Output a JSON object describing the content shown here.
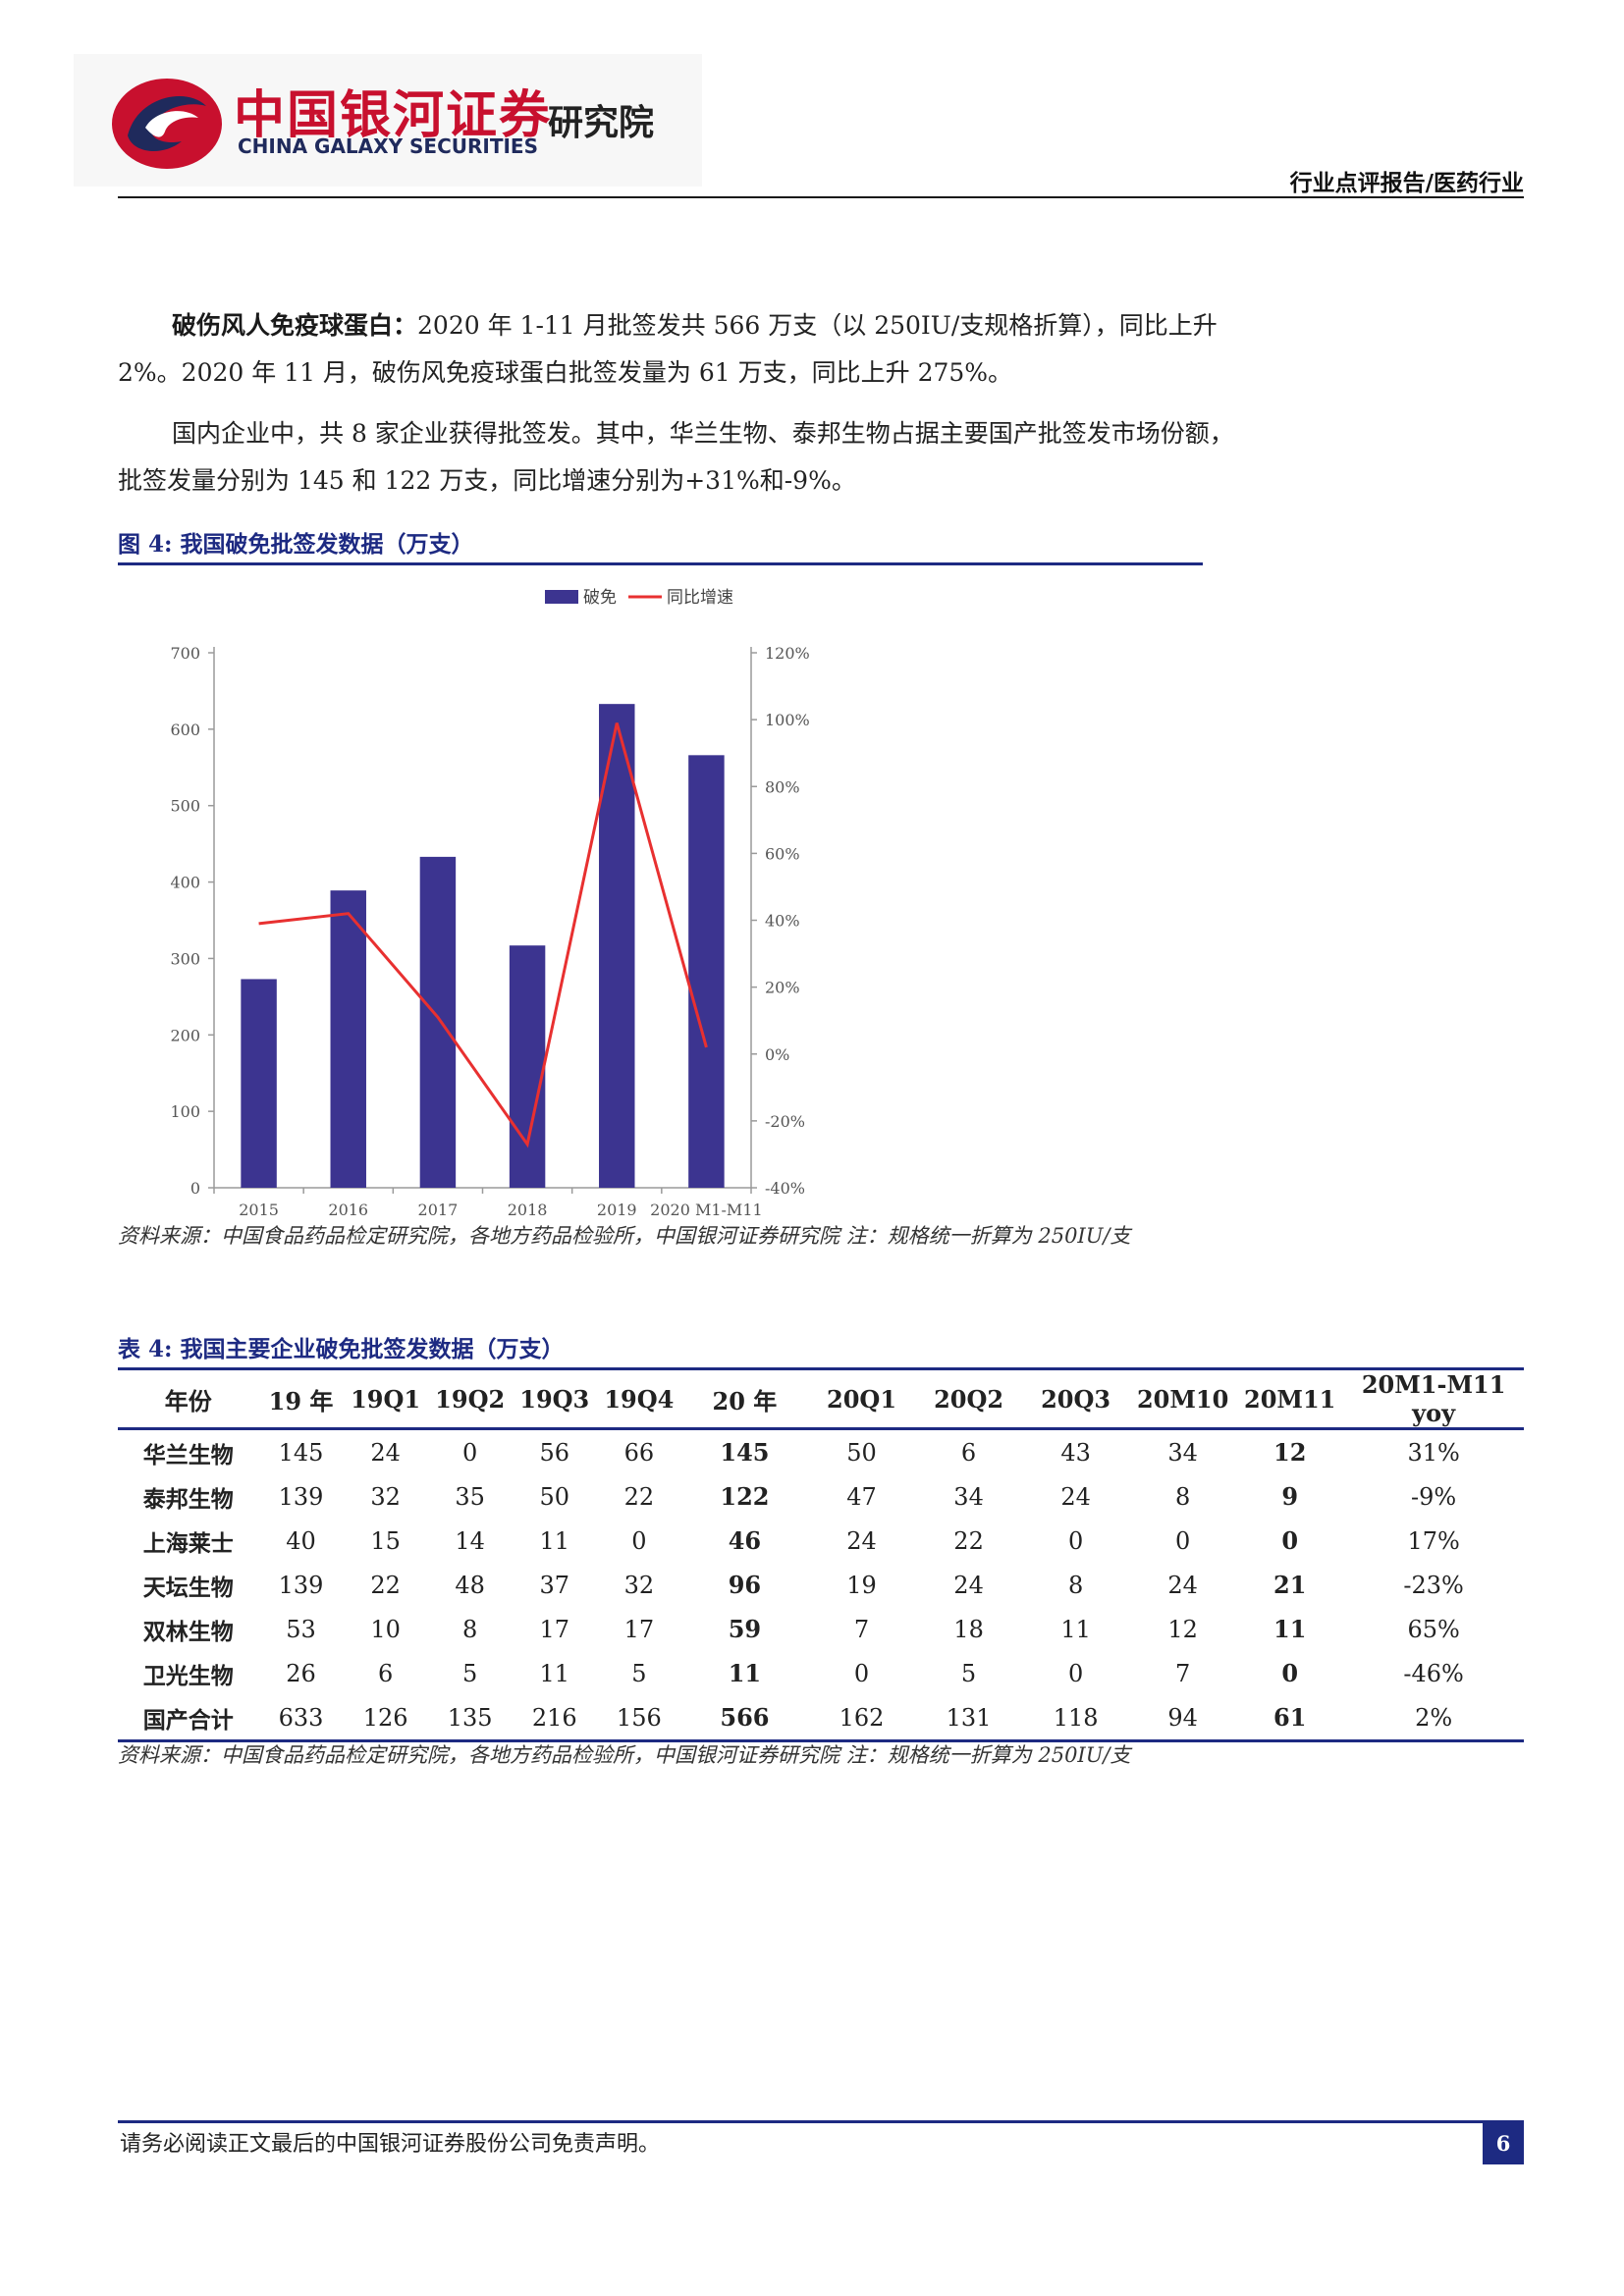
{
  "header": {
    "logo_cn": "中国银河证券",
    "logo_en": "CHINA GALAXY SECURITIES",
    "logo_institute": "研究院",
    "category": "行业点评报告/医药行业"
  },
  "body": {
    "para1_lead": "破伤风人免疫球蛋白：",
    "para1_text": "2020 年 1-11 月批签发共 566 万支（以 250IU/支规格折算），同比上升 2%。2020 年 11 月，破伤风免疫球蛋白批签发量为 61 万支，同比上升 275%。",
    "para2_text": "国内企业中，共 8 家企业获得批签发。其中，华兰生物、泰邦生物占据主要国产批签发市场份额，批签发量分别为 145 和 122 万支，同比增速分别为+31%和-9%。"
  },
  "figure": {
    "caption": "图 4:  我国破免批签发数据（万支）",
    "source": "资料来源：中国食品药品检定研究院，各地方药品检验所，中国银河证券研究院  注：规格统一折算为 250IU/支"
  },
  "chart_data": {
    "type": "bar",
    "categories": [
      "2015",
      "2016",
      "2017",
      "2018",
      "2019",
      "2020 M1-M11"
    ],
    "series": [
      {
        "name": "破免",
        "type": "bar",
        "axis": "left",
        "values": [
          273,
          389,
          433,
          317,
          633,
          566
        ]
      },
      {
        "name": "同比增速",
        "type": "line",
        "axis": "right",
        "values": [
          39,
          42,
          11,
          -27,
          99,
          2
        ]
      }
    ],
    "y_left": {
      "ticks": [
        "0",
        "100",
        "200",
        "300",
        "400",
        "500",
        "600",
        "700"
      ],
      "range": [
        0,
        700
      ]
    },
    "y_right": {
      "ticks": [
        "-40%",
        "-20%",
        "0%",
        "20%",
        "40%",
        "60%",
        "80%",
        "100%",
        "120%"
      ],
      "range": [
        -40,
        120
      ]
    },
    "legend": "top-center",
    "colors": {
      "bar": "#3c3490",
      "line": "#e83030"
    }
  },
  "table": {
    "caption": "表 4:  我国主要企业破免批签发数据（万支）",
    "headers": [
      "年份",
      "19 年",
      "19Q1",
      "19Q2",
      "19Q3",
      "19Q4",
      "20 年",
      "20Q1",
      "20Q2",
      "20Q3",
      "20M10",
      "20M11",
      "20M1-M11 yoy"
    ],
    "rows": [
      [
        "华兰生物",
        "145",
        "24",
        "0",
        "56",
        "66",
        "145",
        "50",
        "6",
        "43",
        "34",
        "12",
        "31%"
      ],
      [
        "泰邦生物",
        "139",
        "32",
        "35",
        "50",
        "22",
        "122",
        "47",
        "34",
        "24",
        "8",
        "9",
        "-9%"
      ],
      [
        "上海莱士",
        "40",
        "15",
        "14",
        "11",
        "0",
        "46",
        "24",
        "22",
        "0",
        "0",
        "0",
        "17%"
      ],
      [
        "天坛生物",
        "139",
        "22",
        "48",
        "37",
        "32",
        "96",
        "19",
        "24",
        "8",
        "24",
        "21",
        "-23%"
      ],
      [
        "双林生物",
        "53",
        "10",
        "8",
        "17",
        "17",
        "59",
        "7",
        "18",
        "11",
        "12",
        "11",
        "65%"
      ],
      [
        "卫光生物",
        "26",
        "6",
        "5",
        "11",
        "5",
        "11",
        "0",
        "5",
        "0",
        "7",
        "0",
        "-46%"
      ],
      [
        "国产合计",
        "633",
        "126",
        "135",
        "216",
        "156",
        "566",
        "162",
        "131",
        "118",
        "94",
        "61",
        "2%"
      ]
    ],
    "source": "资料来源：中国食品药品检定研究院，各地方药品检验所，中国银河证券研究院  注：规格统一折算为 250IU/支"
  },
  "footer": {
    "disclaimer": "请务必阅读正文最后的中国银河证券股份公司免责声明。",
    "page_number": "6"
  }
}
